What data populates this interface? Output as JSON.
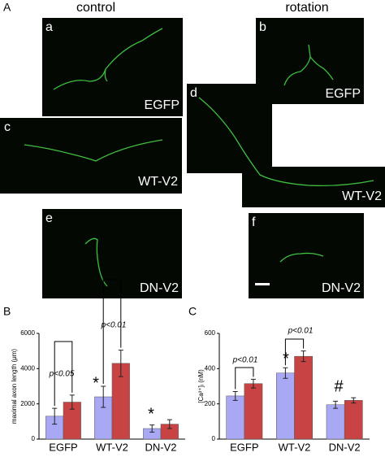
{
  "panel_A": {
    "letter": "A",
    "column_titles": [
      "control",
      "rotation"
    ],
    "images": [
      {
        "letter": "a",
        "label": "EGFP"
      },
      {
        "letter": "b",
        "label": "EGFP"
      },
      {
        "letter": "c",
        "label": "WT-V2"
      },
      {
        "letter": "d",
        "label": "WT-V2"
      },
      {
        "letter": "e",
        "label": "DN-V2"
      },
      {
        "letter": "f",
        "label": "DN-V2"
      }
    ]
  },
  "chart_data": [
    {
      "type": "bar",
      "panel": "B",
      "y_label": "maximal axon length (μm)",
      "categories": [
        "EGFP",
        "WT-V2",
        "DN-V2"
      ],
      "series": [
        {
          "color": "#a8a8f4",
          "values": [
            1300,
            2400,
            600
          ],
          "errors": [
            450,
            600,
            200
          ]
        },
        {
          "color": "#c84444",
          "values": [
            2100,
            4300,
            850
          ],
          "errors": [
            400,
            750,
            250
          ]
        }
      ],
      "ylim": [
        0,
        6000
      ],
      "yticks": [
        0,
        2000,
        4000,
        6000
      ],
      "annotations": [
        "p<0.05",
        "p<0.01",
        "*",
        "*"
      ]
    },
    {
      "type": "bar",
      "panel": "C",
      "y_label": "[Ca²⁺]ᵢ (nM)",
      "categories": [
        "EGFP",
        "WT-V2",
        "DN-V2"
      ],
      "series": [
        {
          "color": "#a8a8f4",
          "values": [
            245,
            375,
            195
          ],
          "errors": [
            25,
            30,
            20
          ]
        },
        {
          "color": "#c84444",
          "values": [
            315,
            470,
            220
          ],
          "errors": [
            25,
            30,
            15
          ]
        }
      ],
      "ylim": [
        0,
        600
      ],
      "yticks": [
        0,
        200,
        400,
        600
      ],
      "annotations": [
        "p<0.01",
        "p<0.01",
        "*",
        "#"
      ]
    }
  ]
}
